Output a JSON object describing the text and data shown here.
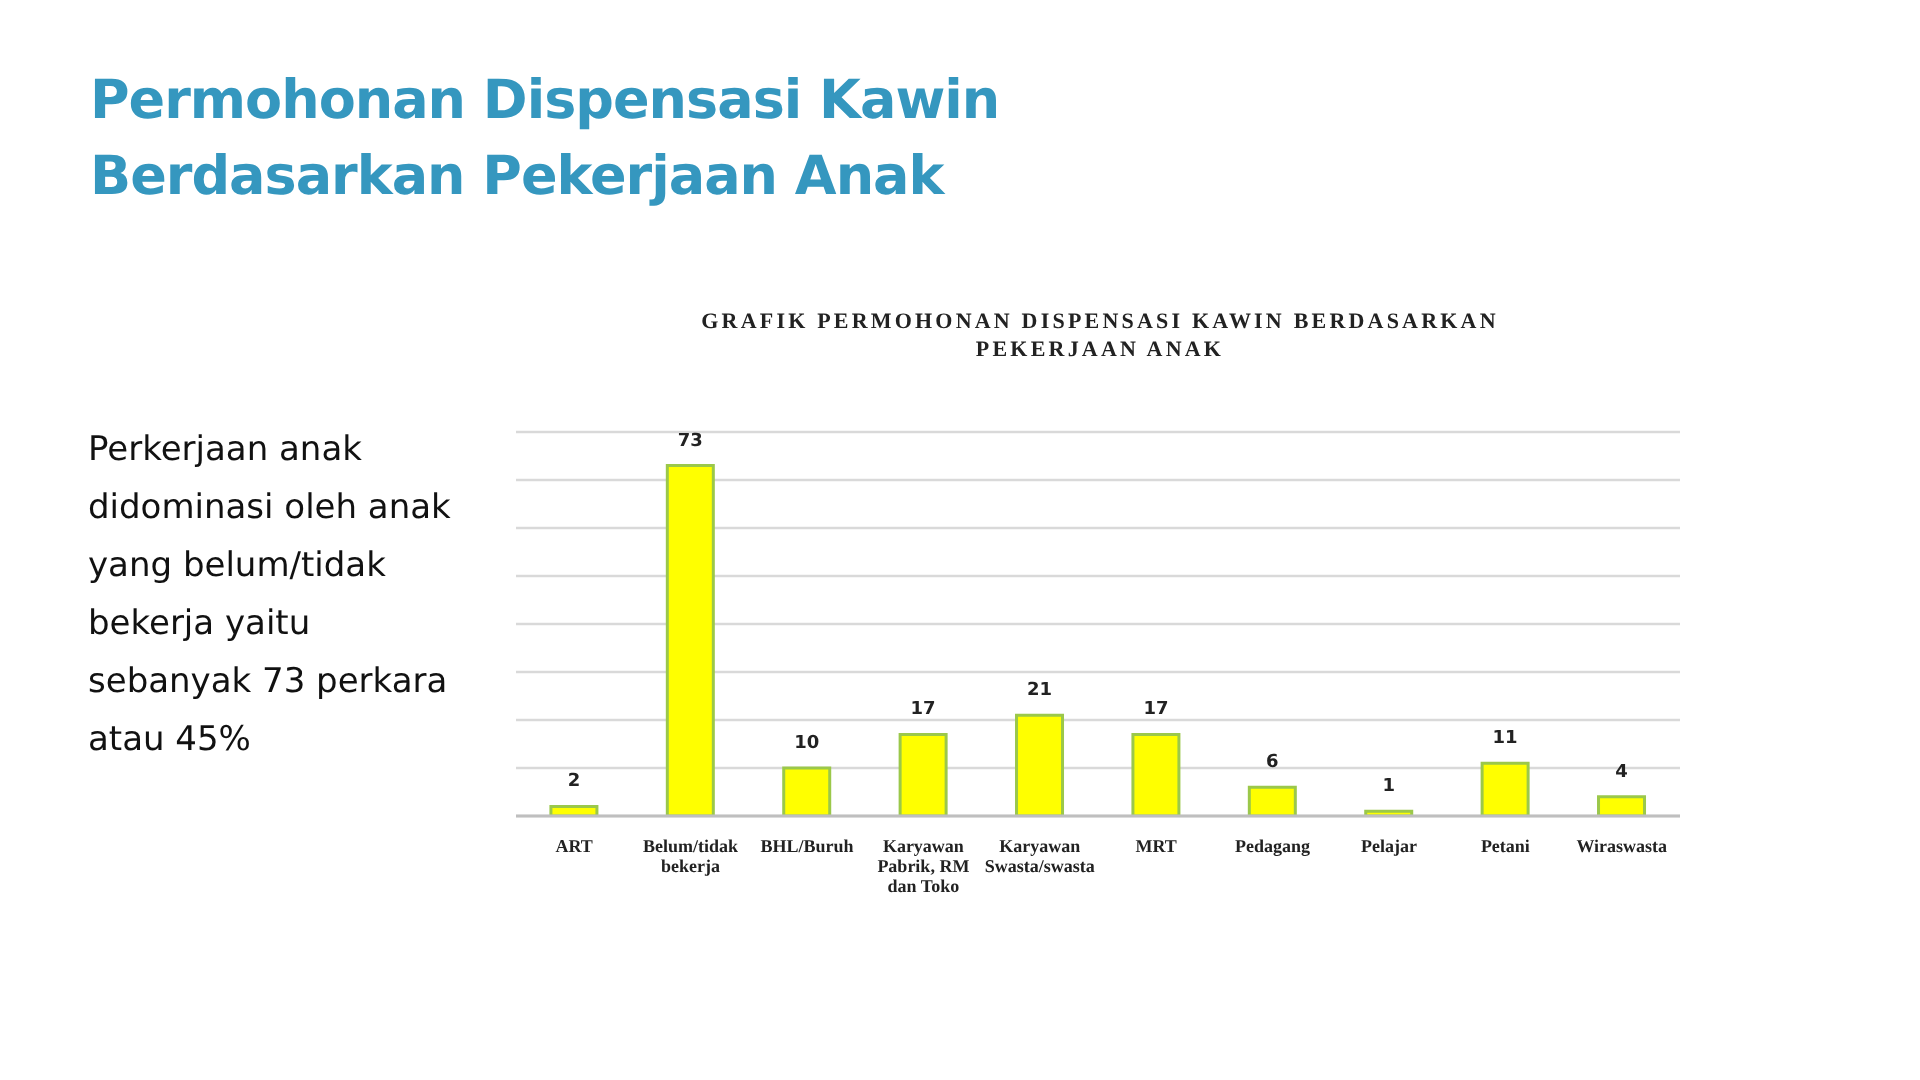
{
  "chart_data": {
    "type": "bar",
    "title": "Permohonan Dispensasi Kawin Berdasarkan Pekerjaan Anak",
    "subtitle": "GRAFIK PERMOHONAN DISPENSASI KAWIN BERDASARKAN PEKERJAAN ANAK",
    "annotations": [
      "Perkerjaan anak didominasi oleh anak yang belum/tidak bekerja yaitu sebanyak 73 perkara atau 45%"
    ],
    "categories": [
      "ART",
      "Belum/tidak bekerja",
      "BHL/Buruh",
      "Karyawan Pabrik, RM dan Toko",
      "Karyawan Swasta/swasta",
      "MRT",
      "Pedagang",
      "Pelajar",
      "Petani",
      "Wiraswasta"
    ],
    "values": [
      2,
      73,
      10,
      17,
      21,
      17,
      6,
      1,
      11,
      4
    ],
    "color": "#ffff00",
    "data_labels": true,
    "ylim": [
      0,
      80
    ],
    "yticks": [
      {
        "value": 0,
        "label": null
      },
      {
        "value": 10,
        "label": null
      },
      {
        "value": 20,
        "label": null
      },
      {
        "value": 30,
        "label": null
      },
      {
        "value": 40,
        "label": null
      },
      {
        "value": 50,
        "label": null
      },
      {
        "value": 60,
        "label": null
      },
      {
        "value": 70,
        "label": null
      },
      {
        "value": 80,
        "label": null
      }
    ],
    "grid": "y",
    "tick_labels": "x"
  }
}
